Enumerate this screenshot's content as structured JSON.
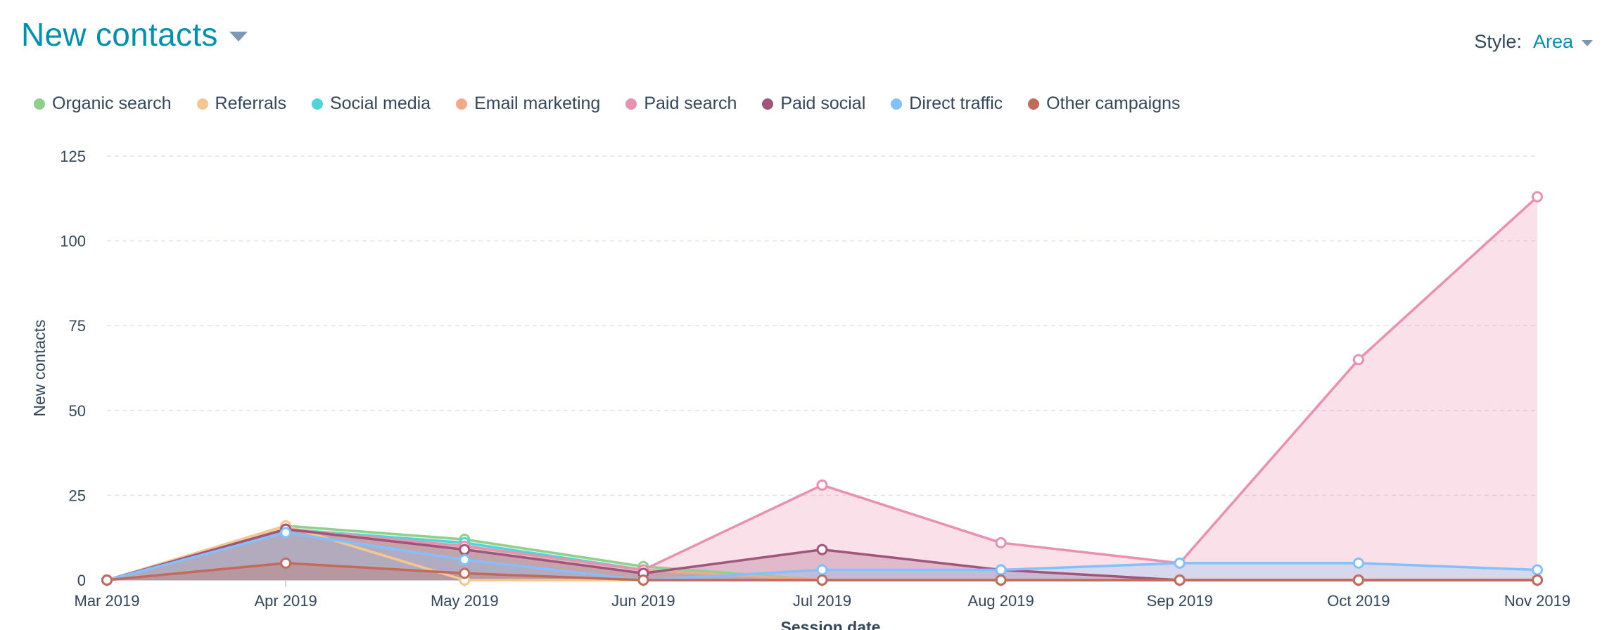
{
  "header": {
    "title": "New contacts"
  },
  "style_control": {
    "label": "Style:",
    "value": "Area"
  },
  "chart_data": {
    "type": "area",
    "categories": [
      "Mar 2019",
      "Apr 2019",
      "May 2019",
      "Jun 2019",
      "Jul 2019",
      "Aug 2019",
      "Sep 2019",
      "Oct 2019",
      "Nov 2019"
    ],
    "ylabel": "New contacts",
    "xlabel": "Session date",
    "ylim": [
      0,
      125
    ],
    "yticks": [
      0,
      25,
      50,
      75,
      100,
      125
    ],
    "grid": true,
    "legend_position": "top-left",
    "series": [
      {
        "name": "Organic search",
        "color": "#8ed08c",
        "values": [
          0,
          16,
          12,
          4,
          0,
          0,
          0,
          0,
          0
        ]
      },
      {
        "name": "Referrals",
        "color": "#f5c78e",
        "values": [
          0,
          16,
          0,
          0,
          0,
          0,
          0,
          0,
          0
        ]
      },
      {
        "name": "Social media",
        "color": "#51d3d9",
        "values": [
          0,
          15,
          11,
          3,
          0,
          0,
          0,
          0,
          0
        ]
      },
      {
        "name": "Email marketing",
        "color": "#f4a88a",
        "values": [
          0,
          15,
          10,
          3,
          0,
          0,
          0,
          0,
          0
        ]
      },
      {
        "name": "Paid search",
        "color": "#ea90b1",
        "values": [
          0,
          15,
          10,
          3,
          28,
          11,
          5,
          65,
          113
        ]
      },
      {
        "name": "Paid social",
        "color": "#a2557b",
        "values": [
          0,
          15,
          9,
          2,
          9,
          3,
          0,
          0,
          0
        ]
      },
      {
        "name": "Direct traffic",
        "color": "#81c1fd",
        "values": [
          0,
          14,
          6,
          0,
          3,
          3,
          5,
          5,
          3
        ]
      },
      {
        "name": "Other campaigns",
        "color": "#c26b5b",
        "values": [
          0,
          5,
          2,
          0,
          0,
          0,
          0,
          0,
          0
        ]
      }
    ]
  }
}
